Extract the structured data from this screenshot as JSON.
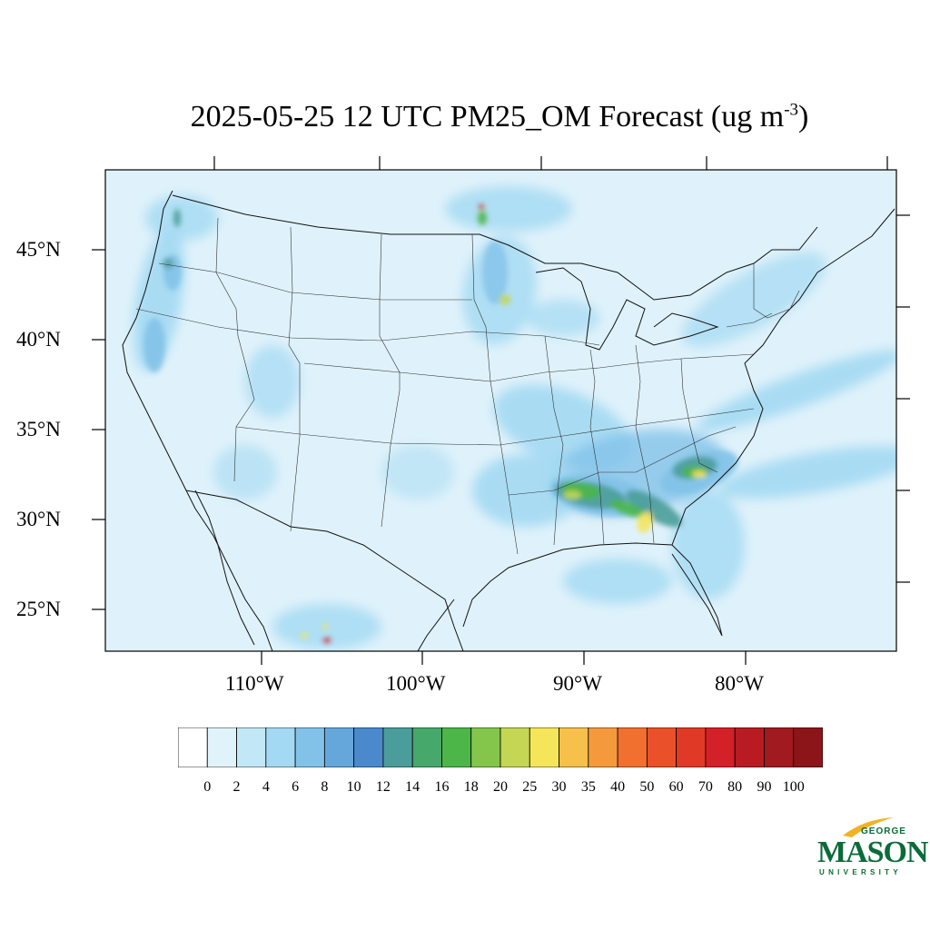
{
  "title": {
    "main": "2025-05-25 12 UTC PM25_OM Forecast (ug m",
    "superscript": "-3",
    "close": ")"
  },
  "latitude_labels": [
    "45°N",
    "40°N",
    "35°N",
    "30°N",
    "25°N"
  ],
  "longitude_labels": [
    "110°W",
    "100°W",
    "90°W",
    "80°W"
  ],
  "colorbar": {
    "labels": [
      "0",
      "2",
      "4",
      "6",
      "8",
      "10",
      "12",
      "14",
      "16",
      "18",
      "20",
      "25",
      "30",
      "35",
      "40",
      "50",
      "60",
      "70",
      "80",
      "90",
      "100"
    ],
    "colors": [
      "#ffffff",
      "#e0f3fb",
      "#c2e7f6",
      "#a3d9f2",
      "#82c2e8",
      "#66a7db",
      "#4a8acc",
      "#4a9d9a",
      "#46a86a",
      "#4db648",
      "#84c54b",
      "#c4d654",
      "#f5e55a",
      "#f6c04a",
      "#f59a3c",
      "#f17030",
      "#ea5029",
      "#e03a26",
      "#d42027",
      "#b81c22",
      "#a01a1f",
      "#8b1518"
    ]
  },
  "map": {
    "background_color": "#dff2fb",
    "hotspot_colors": {
      "light": "#a3d9f2",
      "medium": "#82c2e8",
      "teal": "#4a9d9a",
      "green": "#4db648",
      "yellowgreen": "#c4d654",
      "yellow": "#f5e55a",
      "red": "#d42027"
    }
  },
  "logo": {
    "line1": "GEORGE",
    "line2": "MASON",
    "line3": "UNIVERSITY",
    "color": "#0b6b3a"
  }
}
